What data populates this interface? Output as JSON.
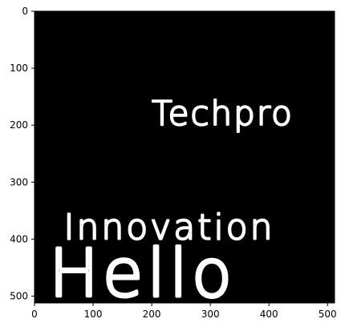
{
  "chart_data": {
    "type": "image",
    "title": "",
    "xlabel": "",
    "ylabel": "",
    "xlim": [
      0,
      512
    ],
    "ylim": [
      512,
      0
    ],
    "x_ticks": [
      0,
      100,
      200,
      300,
      400,
      500
    ],
    "y_ticks": [
      0,
      100,
      200,
      300,
      400,
      500
    ],
    "background_color": "#000000",
    "text_color": "#ffffff",
    "texts": [
      {
        "text": "Techpro",
        "x": 200,
        "y": 200
      },
      {
        "text": "Innovation",
        "x": 50,
        "y": 400
      },
      {
        "text": "Hello",
        "x": 25,
        "y": 500
      }
    ]
  }
}
